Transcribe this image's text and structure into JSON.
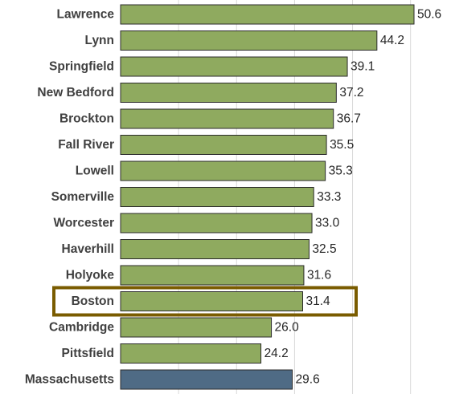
{
  "chart_data": {
    "type": "bar",
    "orientation": "horizontal",
    "categories": [
      "Lawrence",
      "Lynn",
      "Springfield",
      "New Bedford",
      "Brockton",
      "Fall River",
      "Lowell",
      "Somerville",
      "Worcester",
      "Haverhill",
      "Holyoke",
      "Boston",
      "Cambridge",
      "Pittsfield",
      "Massachusetts"
    ],
    "values": [
      50.6,
      44.2,
      39.1,
      37.2,
      36.7,
      35.5,
      35.3,
      33.3,
      33.0,
      32.5,
      31.6,
      31.4,
      26.0,
      24.2,
      29.6
    ],
    "value_labels": [
      "50.6",
      "44.2",
      "39.1",
      "37.2",
      "36.7",
      "35.5",
      "35.3",
      "33.3",
      "33.0",
      "32.5",
      "31.6",
      "31.4",
      "26.0",
      "24.2",
      "29.6"
    ],
    "xlim": [
      0,
      52
    ],
    "grid": true,
    "legend": "none",
    "highlighted_category": "Boston",
    "colors": {
      "bar": "#8faa5f",
      "aggregate_bar": "#4f6b85",
      "highlight_box": "#7a5c00",
      "label": "#404040"
    },
    "aggregate_category": "Massachusetts"
  }
}
